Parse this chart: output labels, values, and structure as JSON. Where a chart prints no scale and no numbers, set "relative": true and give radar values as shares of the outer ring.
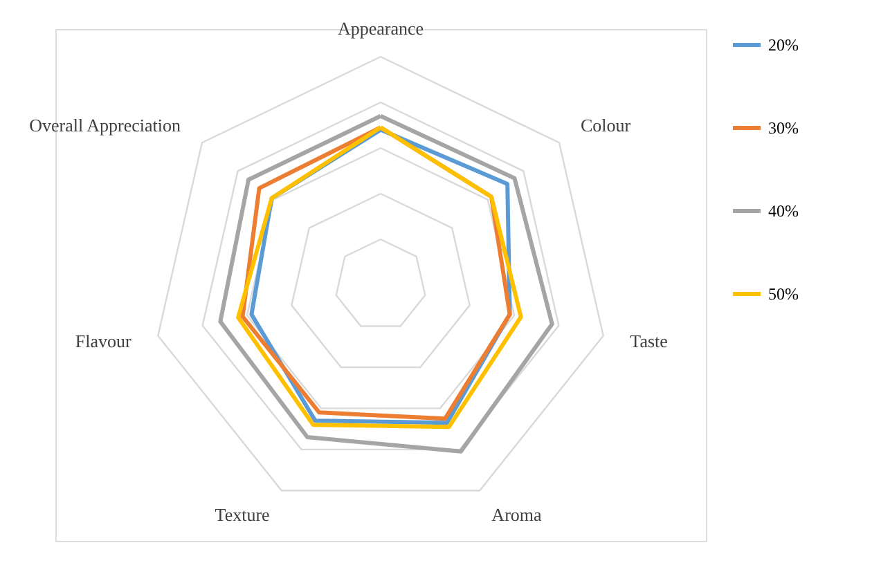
{
  "chart_data": {
    "type": "radar",
    "relative": true,
    "grid": true,
    "legend": "right",
    "marker": "none",
    "categories": [
      "Appearance",
      "Colour",
      "Taste",
      "Aroma",
      "Texture",
      "Flavour",
      "Overall Appreciation"
    ],
    "series": [
      {
        "name": "20%",
        "color": "#5b9bd5",
        "values": [
          0.68,
          0.71,
          0.58,
          0.67,
          0.66,
          0.58,
          0.61
        ]
      },
      {
        "name": "30%",
        "color": "#ed7d31",
        "values": [
          0.69,
          0.62,
          0.58,
          0.65,
          0.62,
          0.62,
          0.68
        ]
      },
      {
        "name": "40%",
        "color": "#a5a5a5",
        "values": [
          0.74,
          0.75,
          0.77,
          0.81,
          0.74,
          0.72,
          0.74
        ]
      },
      {
        "name": "50%",
        "color": "#ffc000",
        "values": [
          0.69,
          0.62,
          0.63,
          0.69,
          0.68,
          0.64,
          0.61
        ]
      }
    ]
  }
}
